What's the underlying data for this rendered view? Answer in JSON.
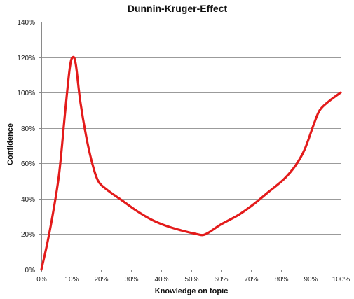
{
  "chart_data": {
    "type": "line",
    "title": "Dunnin-Kruger-Effect",
    "xlabel": "Knowledge on topic",
    "ylabel": "Confidence",
    "xlim": [
      0,
      100
    ],
    "ylim": [
      0,
      140
    ],
    "x_ticks": [
      0,
      10,
      20,
      30,
      40,
      50,
      60,
      70,
      80,
      90,
      100
    ],
    "y_ticks": [
      0,
      20,
      40,
      60,
      80,
      100,
      120,
      140
    ],
    "x_tick_labels": [
      "0%",
      "10%",
      "20%",
      "30%",
      "40%",
      "50%",
      "60%",
      "70%",
      "80%",
      "90%",
      "100%"
    ],
    "y_tick_labels": [
      "0%",
      "20%",
      "40%",
      "60%",
      "80%",
      "100%",
      "120%",
      "140%"
    ],
    "grid": {
      "horizontal": true,
      "vertical": false
    },
    "legend": "none",
    "series": [
      {
        "color": "#e31b1b",
        "points": [
          {
            "x": 0,
            "y": 0
          },
          {
            "x": 2,
            "y": 15
          },
          {
            "x": 4,
            "y": 33
          },
          {
            "x": 6,
            "y": 55
          },
          {
            "x": 8,
            "y": 90
          },
          {
            "x": 9.5,
            "y": 114
          },
          {
            "x": 10.5,
            "y": 120
          },
          {
            "x": 11.5,
            "y": 116
          },
          {
            "x": 13,
            "y": 95
          },
          {
            "x": 15,
            "y": 75
          },
          {
            "x": 17,
            "y": 60
          },
          {
            "x": 19,
            "y": 50
          },
          {
            "x": 22,
            "y": 45
          },
          {
            "x": 27,
            "y": 39
          },
          {
            "x": 32,
            "y": 33
          },
          {
            "x": 37,
            "y": 28
          },
          {
            "x": 42,
            "y": 24.5
          },
          {
            "x": 47,
            "y": 22
          },
          {
            "x": 52,
            "y": 20
          },
          {
            "x": 54,
            "y": 19.5
          },
          {
            "x": 56,
            "y": 21
          },
          {
            "x": 60,
            "y": 25.5
          },
          {
            "x": 66,
            "y": 31
          },
          {
            "x": 71,
            "y": 37
          },
          {
            "x": 76,
            "y": 44
          },
          {
            "x": 81,
            "y": 51
          },
          {
            "x": 85,
            "y": 59
          },
          {
            "x": 88,
            "y": 68
          },
          {
            "x": 91,
            "y": 82
          },
          {
            "x": 93,
            "y": 90
          },
          {
            "x": 96,
            "y": 95
          },
          {
            "x": 100,
            "y": 100
          }
        ]
      }
    ]
  }
}
